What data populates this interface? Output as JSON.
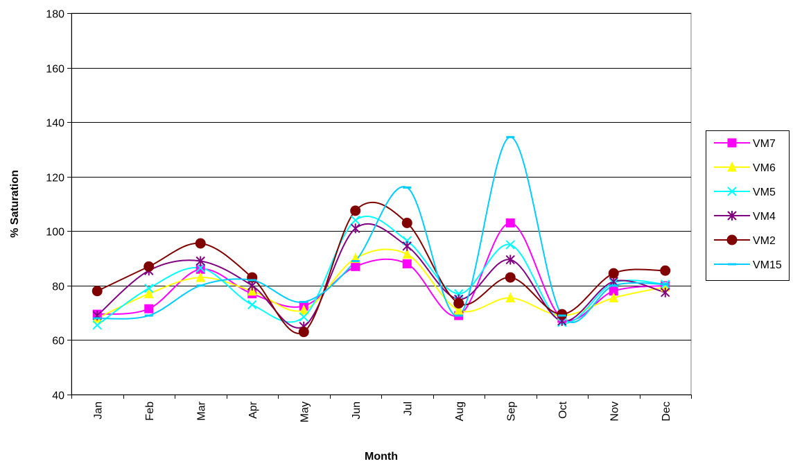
{
  "chart_data": {
    "type": "line",
    "smoothed": true,
    "title": "",
    "xlabel": "Month",
    "ylabel": "% Saturation",
    "ylim": [
      40,
      180
    ],
    "yticks": [
      40,
      60,
      80,
      100,
      120,
      140,
      160,
      180
    ],
    "grid": "horizontal",
    "legend_position": "right",
    "categories": [
      "Jan",
      "Feb",
      "Mar",
      "Apr",
      "May",
      "Jun",
      "Jul",
      "Aug",
      "Sep",
      "Oct",
      "Nov",
      "Dec"
    ],
    "series": [
      {
        "name": "VM7",
        "color": "#FF00FF",
        "marker": "square",
        "values": [
          69.5,
          71.5,
          86,
          77,
          72.5,
          87,
          88,
          69,
          103,
          68,
          78,
          80
        ]
      },
      {
        "name": "VM6",
        "color": "#FFFF00",
        "marker": "triangle",
        "values": [
          68,
          77,
          83,
          78,
          71,
          90,
          91.5,
          71,
          75.5,
          69,
          75.5,
          79.5
        ]
      },
      {
        "name": "VM5",
        "color": "#00FFFF",
        "marker": "x",
        "values": [
          65.5,
          79,
          86.5,
          73,
          68.5,
          104,
          96.5,
          77,
          95,
          66.5,
          81,
          80.5
        ]
      },
      {
        "name": "VM4",
        "color": "#800080",
        "marker": "star",
        "values": [
          69,
          85.5,
          89,
          80,
          65,
          101,
          94.5,
          75,
          89.5,
          67,
          81.5,
          77.5
        ]
      },
      {
        "name": "VM2",
        "color": "#800000",
        "marker": "circle",
        "values": [
          78,
          87,
          95.5,
          83,
          63,
          107.5,
          103,
          73.5,
          83,
          69.5,
          84.5,
          85.5
        ]
      },
      {
        "name": "VM15",
        "color": "#00CCFF",
        "marker": "dash",
        "values": [
          68,
          69,
          80,
          82,
          74,
          89,
          116,
          69,
          134.5,
          69,
          80,
          80.5
        ]
      }
    ]
  }
}
